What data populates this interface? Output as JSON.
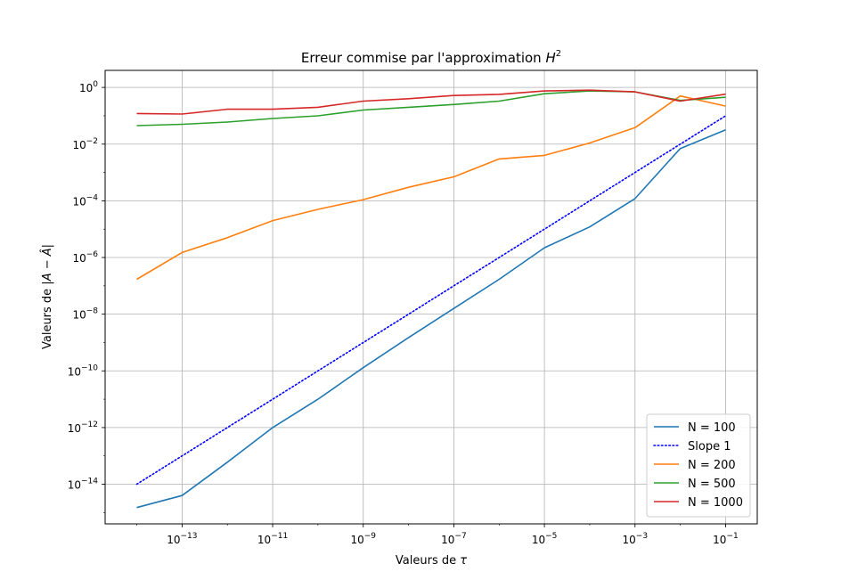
{
  "chart_data": {
    "type": "line",
    "title": "Erreur commise par l'approximation",
    "title_math": {
      "base": "H",
      "exp": "2"
    },
    "xlabel": "Valeurs de",
    "xlabel_symbol": "τ",
    "ylabel": "Valeurs de",
    "ylabel_math": "|A − Â|",
    "x_scale": "log",
    "y_scale": "log",
    "xlim": [
      2e-15,
      0.5
    ],
    "ylim": [
      4e-16,
      4
    ],
    "grid": true,
    "legend_position": "lower-right",
    "x_ticks": [
      {
        "value": 1e-13,
        "base": "10",
        "exp": "−13"
      },
      {
        "value": 1e-11,
        "base": "10",
        "exp": "−11"
      },
      {
        "value": 1e-09,
        "base": "10",
        "exp": "−9"
      },
      {
        "value": 1e-07,
        "base": "10",
        "exp": "−7"
      },
      {
        "value": 1e-05,
        "base": "10",
        "exp": "−5"
      },
      {
        "value": 0.001,
        "base": "10",
        "exp": "−3"
      },
      {
        "value": 0.1,
        "base": "10",
        "exp": "−1"
      }
    ],
    "y_ticks": [
      {
        "value": 1,
        "base": "10",
        "exp": "0"
      },
      {
        "value": 0.01,
        "base": "10",
        "exp": "−2"
      },
      {
        "value": 0.0001,
        "base": "10",
        "exp": "−4"
      },
      {
        "value": 1e-06,
        "base": "10",
        "exp": "−6"
      },
      {
        "value": 1e-08,
        "base": "10",
        "exp": "−8"
      },
      {
        "value": 1e-10,
        "base": "10",
        "exp": "−10"
      },
      {
        "value": 1e-12,
        "base": "10",
        "exp": "−12"
      },
      {
        "value": 1e-14,
        "base": "10",
        "exp": "−14"
      }
    ],
    "x": [
      1e-14,
      1e-13,
      1e-12,
      1e-11,
      1e-10,
      1e-09,
      1e-08,
      1e-07,
      1e-06,
      1e-05,
      0.0001,
      0.001,
      0.01,
      0.1
    ],
    "series": [
      {
        "name": "N = 100",
        "color": "#1f77b4",
        "style": "solid",
        "values": [
          1.5e-15,
          4e-15,
          6e-14,
          1e-12,
          1e-11,
          1.3e-10,
          1.5e-09,
          1.6e-08,
          1.7e-07,
          2.2e-06,
          1.2e-05,
          0.00012,
          0.007,
          0.032
        ]
      },
      {
        "name": "Slope 1",
        "color": "#0000ff",
        "style": "dotted",
        "values": [
          1e-14,
          1e-13,
          1e-12,
          1e-11,
          1e-10,
          1e-09,
          1e-08,
          1e-07,
          1e-06,
          1e-05,
          0.0001,
          0.001,
          0.01,
          0.1
        ]
      },
      {
        "name": "N = 200",
        "color": "#ff7f0e",
        "style": "solid",
        "values": [
          1.7e-07,
          1.5e-06,
          5e-06,
          2e-05,
          5e-05,
          0.00011,
          0.0003,
          0.0007,
          0.003,
          0.004,
          0.011,
          0.038,
          0.5,
          0.22
        ]
      },
      {
        "name": "N = 500",
        "color": "#2ca02c",
        "style": "solid",
        "values": [
          0.045,
          0.05,
          0.06,
          0.08,
          0.1,
          0.16,
          0.2,
          0.25,
          0.33,
          0.6,
          0.75,
          0.7,
          0.35,
          0.45
        ]
      },
      {
        "name": "N = 1000",
        "color": "#d62728",
        "style": "solid",
        "values": [
          0.12,
          0.115,
          0.17,
          0.17,
          0.2,
          0.33,
          0.4,
          0.52,
          0.57,
          0.75,
          0.8,
          0.7,
          0.33,
          0.58
        ]
      }
    ]
  }
}
